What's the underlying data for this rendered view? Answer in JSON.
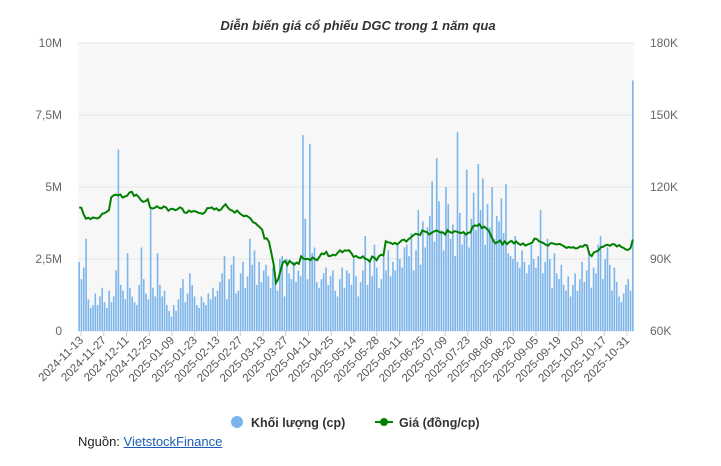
{
  "chart_data": {
    "type": "bar+line",
    "title": "Diễn biến giá cổ phiếu DGC trong 1 năm qua",
    "left_axis": {
      "ticks": [
        0,
        2.5,
        5,
        7.5,
        10
      ],
      "tick_labels": [
        "0",
        "2,5M",
        "5M",
        "7,5M",
        "10M"
      ],
      "range": [
        0,
        10
      ],
      "unit": "M"
    },
    "right_axis": {
      "ticks": [
        60,
        90,
        120,
        150,
        180
      ],
      "tick_labels": [
        "60K",
        "90K",
        "120K",
        "150K",
        "180K"
      ],
      "range": [
        60,
        180
      ],
      "unit": "K"
    },
    "x_tick_labels": [
      "2024-11-13",
      "2024-11-27",
      "2024-12-11",
      "2024-12-25",
      "2025-01-09",
      "2025-01-23",
      "2025-02-13",
      "2025-02-27",
      "2025-03-13",
      "2025-03-27",
      "2025-04-11",
      "2025-04-25",
      "2025-05-14",
      "2025-05-28",
      "2025-06-11",
      "2025-06-25",
      "2025-07-09",
      "2025-07-23",
      "2025-08-06",
      "2025-08-20",
      "2025-09-05",
      "2025-09-19",
      "2025-10-03",
      "2025-10-17",
      "2025-10-31"
    ],
    "grid": true,
    "legend_position": "bottom",
    "series": [
      {
        "name": "Khối lượng (cp)",
        "kind": "bar",
        "axis": "left",
        "color": "#7cb5ec",
        "values": [
          2.4,
          1.8,
          2.2,
          3.2,
          1.1,
          0.8,
          0.9,
          1.3,
          0.9,
          1.2,
          1.5,
          1.0,
          0.8,
          1.4,
          1.0,
          1.2,
          2.1,
          6.3,
          1.6,
          1.4,
          1.1,
          2.7,
          1.5,
          1.2,
          1.0,
          0.9,
          1.6,
          2.9,
          1.8,
          1.3,
          1.1,
          4.3,
          1.5,
          1.2,
          2.7,
          1.6,
          1.2,
          1.4,
          0.9,
          0.7,
          0.5,
          0.9,
          0.7,
          1.1,
          1.5,
          1.8,
          1.0,
          1.3,
          2.0,
          1.6,
          1.2,
          0.9,
          0.8,
          1.2,
          1.0,
          0.9,
          1.3,
          1.1,
          1.5,
          1.2,
          1.4,
          1.7,
          2.0,
          2.6,
          1.1,
          1.8,
          2.3,
          2.6,
          1.3,
          1.4,
          2.0,
          2.4,
          1.5,
          1.9,
          3.2,
          2.3,
          2.8,
          1.6,
          2.4,
          1.7,
          2.1,
          2.3,
          1.9,
          1.5,
          2.2,
          1.8,
          1.4,
          2.5,
          2.6,
          1.2,
          2.5,
          2.0,
          1.8,
          2.4,
          1.7,
          2.1,
          1.9,
          6.8,
          3.9,
          1.8,
          6.5,
          2.7,
          2.9,
          1.7,
          1.5,
          1.8,
          2.0,
          2.2,
          1.6,
          1.9,
          2.1,
          1.4,
          1.2,
          1.8,
          2.2,
          1.5,
          2.1,
          2.0,
          1.6,
          2.5,
          1.9,
          1.2,
          1.7,
          2.1,
          3.3,
          1.6,
          2.4,
          1.9,
          3.0,
          2.2,
          1.5,
          1.8,
          2.6,
          2.1,
          2.8,
          1.9,
          2.4,
          2.1,
          3.0,
          2.5,
          2.2,
          2.9,
          3.0,
          2.6,
          3.4,
          2.1,
          2.8,
          4.2,
          2.3,
          3.8,
          2.9,
          3.6,
          4.0,
          5.2,
          3.1,
          6.0,
          4.5,
          3.5,
          2.8,
          5.0,
          4.4,
          3.2,
          3.7,
          2.6,
          6.9,
          4.1,
          3.0,
          3.4,
          5.6,
          2.9,
          3.9,
          4.8,
          3.5,
          5.8,
          4.2,
          5.3,
          3.0,
          4.4,
          3.6,
          5.0,
          3.2,
          4.0,
          3.8,
          4.6,
          3.4,
          5.1,
          2.7,
          2.6,
          2.5,
          3.3,
          2.4,
          2.2,
          2.8,
          2.4,
          2.0,
          2.3,
          3.0,
          2.5,
          2.2,
          2.6,
          4.2,
          2.0,
          2.4,
          3.2,
          2.5,
          1.5,
          2.7,
          2.0,
          1.8,
          2.3,
          1.6,
          1.4,
          1.9,
          1.2,
          1.6,
          2.0,
          1.4,
          1.8,
          2.4,
          1.7,
          2.1,
          2.8,
          1.5,
          2.2,
          2.0,
          3.0,
          3.3,
          1.8,
          2.5,
          2.9,
          2.3,
          1.4,
          2.2,
          1.7,
          1.2,
          1.0,
          1.3,
          1.6,
          1.8,
          1.4,
          8.7
        ]
      },
      {
        "name": "Giá (đồng/cp)",
        "kind": "line",
        "axis": "right",
        "color": "#008000",
        "values": [
          111.5,
          111.3,
          108.5,
          106.8,
          107.2,
          106.6,
          107.3,
          107.1,
          106.9,
          107.4,
          108.8,
          109.1,
          109.6,
          110.3,
          115.6,
          116.5,
          116.8,
          116.5,
          116.9,
          115.6,
          116.0,
          116.4,
          117.7,
          118.0,
          116.3,
          116.8,
          115.9,
          114.5,
          113.8,
          114.1,
          114.9,
          111.5,
          111.0,
          111.3,
          112.0,
          111.3,
          111.1,
          111.9,
          111.5,
          110.1,
          110.8,
          110.9,
          110.3,
          110.7,
          111.5,
          111.1,
          109.4,
          109.2,
          110.2,
          109.6,
          110.0,
          109.8,
          109.3,
          109.1,
          108.8,
          109.5,
          111.2,
          111.2,
          111.5,
          110.6,
          111.1,
          110.2,
          110.6,
          111.9,
          112.8,
          111.4,
          110.5,
          110.1,
          109.3,
          110.2,
          109.2,
          108.4,
          107.8,
          108.1,
          107.5,
          106.8,
          105.3,
          105.0,
          104.0,
          103.2,
          102.2,
          98.5,
          98.6,
          97.1,
          92.5,
          87.8,
          80.0,
          81.5,
          85.0,
          88.5,
          89.2,
          87.5,
          89.2,
          88.4,
          87.6,
          88.5,
          88.0,
          91.1,
          90.2,
          89.9,
          90.1,
          89.5,
          90.6,
          90.0,
          89.5,
          90.9,
          92.3,
          92.0,
          93.0,
          91.2,
          91.3,
          91.8,
          91.5,
          92.6,
          93.6,
          92.8,
          93.6,
          93.5,
          93.6,
          92.4,
          90.8,
          91.3,
          90.6,
          90.4,
          91.1,
          90.1,
          89.8,
          88.9,
          91.0,
          90.6,
          89.5,
          91.1,
          91.8,
          91.5,
          97.4,
          96.9,
          96.8,
          96.2,
          96.7,
          96.1,
          96.9,
          97.8,
          98.1,
          97.3,
          98.3,
          99.0,
          99.8,
          100.5,
          100.3,
          100.0,
          101.9,
          101.5,
          101.2,
          100.2,
          100.9,
          101.4,
          101.9,
          101.5,
          101.0,
          101.1,
          100.2,
          102.0,
          101.2,
          100.9,
          101.6,
          101.4,
          101.0,
          100.8,
          101.2,
          100.2,
          100.9,
          101.1,
          103.5,
          104.0,
          103.8,
          104.5,
          102.9,
          103.5,
          102.7,
          101.8,
          99.8,
          97.5,
          96.5,
          97.1,
          97.7,
          96.1,
          97.3,
          96.2,
          97.1,
          97.5,
          96.5,
          97.3,
          96.4,
          95.9,
          96.5,
          95.6,
          96.0,
          96.4,
          96.8,
          98.5,
          98.3,
          97.4,
          97.0,
          96.6,
          95.9,
          95.6,
          96.6,
          96.5,
          96.2,
          96.1,
          96.3,
          95.8,
          95.2,
          94.6,
          95.0,
          94.7,
          94.9,
          94.4,
          94.6,
          95.3,
          95.1,
          95.9,
          95.6,
          92.0,
          91.2,
          92.8,
          93.1,
          93.6,
          94.9,
          95.1,
          95.7,
          95.9,
          95.5,
          96.2,
          96.1,
          95.2,
          95.8,
          95.0,
          94.6,
          93.9,
          93.8,
          94.6,
          98.1
        ]
      }
    ]
  },
  "legend": {
    "volume_label": "Khối lượng (cp)",
    "price_label": "Giá (đồng/cp)"
  },
  "source": {
    "prefix": "Nguồn: ",
    "link_text": "VietstockFinance"
  },
  "colors": {
    "plot_background": "#f7f7f7",
    "gridline": "#e6e6e6",
    "volume": "#7cb5ec",
    "price": "#008000"
  }
}
